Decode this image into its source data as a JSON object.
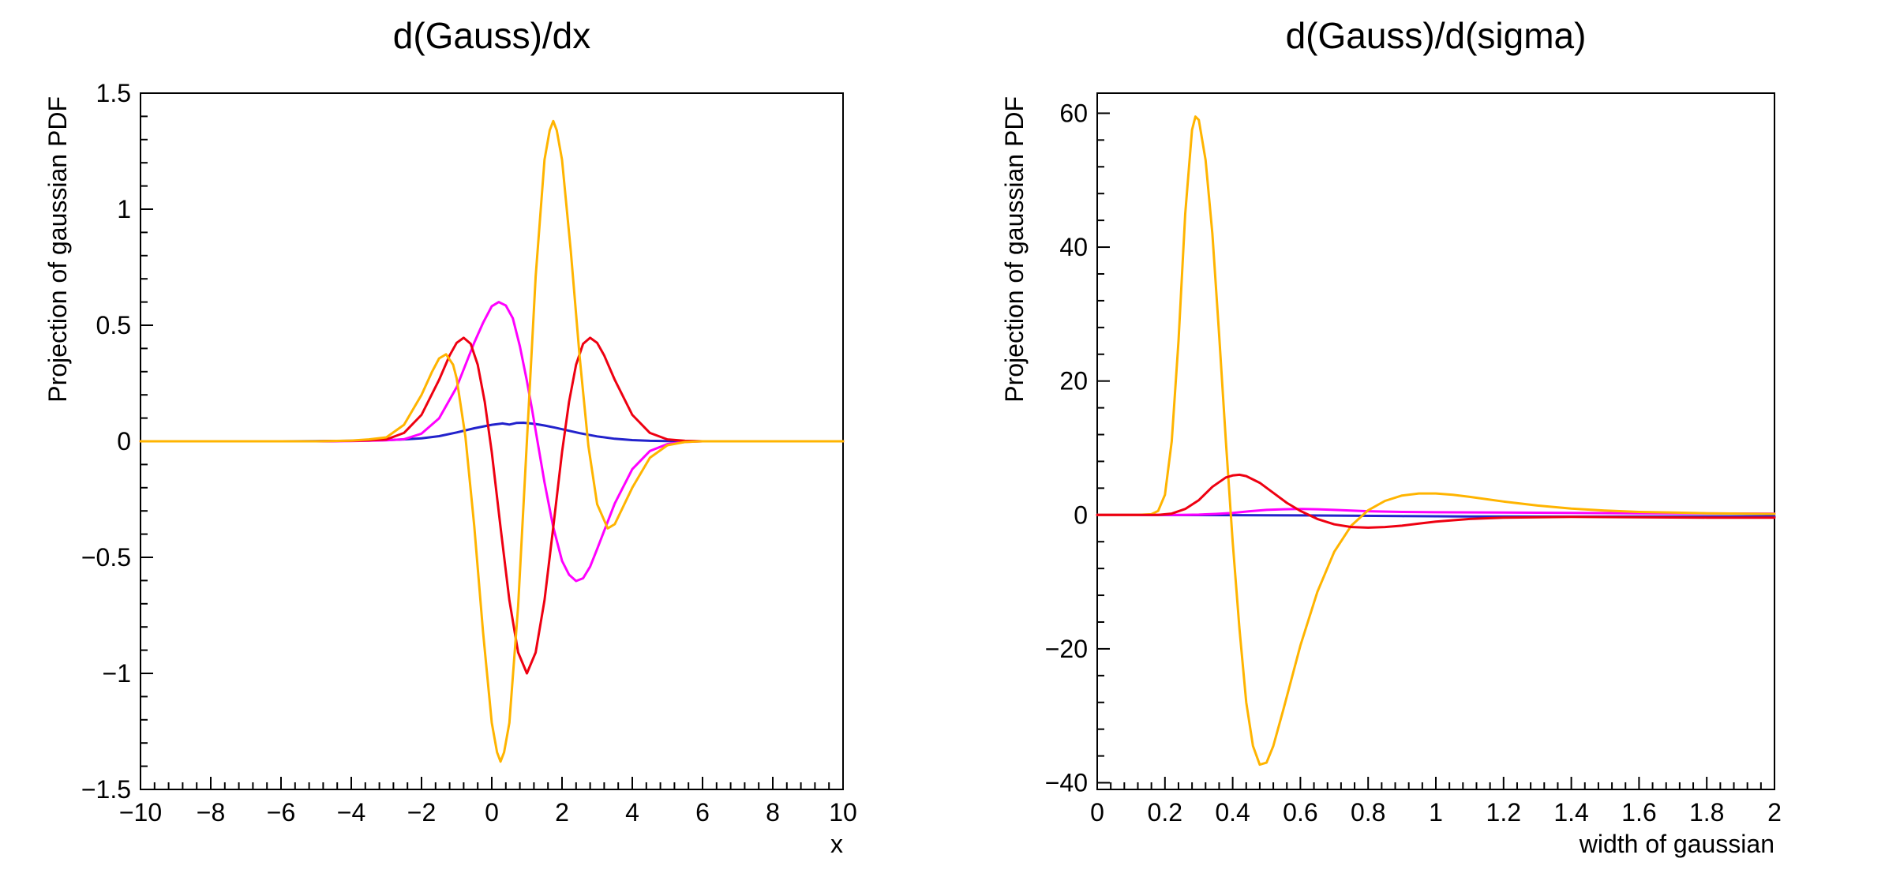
{
  "canvas": {
    "background": "#ffffff"
  },
  "colors": {
    "blue": "#2222cc",
    "magenta": "#ff00ff",
    "red": "#ee0011",
    "orange": "#ffb400",
    "axis": "#000000"
  },
  "chart_data": [
    {
      "type": "line",
      "title": "d(Gauss)/dx",
      "xlabel": "x",
      "ylabel": "Projection of gaussian PDF",
      "xlim": [
        -10,
        10
      ],
      "ylim": [
        -1.5,
        1.5
      ],
      "grid": false,
      "legend": null,
      "x_ticks": [
        -10,
        -8,
        -6,
        -4,
        -2,
        0,
        2,
        4,
        6,
        8,
        10
      ],
      "x_tick_labels": [
        "−10",
        "−8",
        "−6",
        "−4",
        "−2",
        "0",
        "2",
        "4",
        "6",
        "8",
        "10"
      ],
      "x_minor_step": 0.4,
      "y_ticks": [
        -1.5,
        -1,
        -0.5,
        0,
        0.5,
        1,
        1.5
      ],
      "y_tick_labels": [
        "−1.5",
        "−1",
        "−0.5",
        "0",
        "0.5",
        "1",
        "1.5"
      ],
      "y_minor_step": 0.1,
      "frame": {
        "l": 178,
        "r": 1068,
        "t": 118,
        "b": 1000
      },
      "series": [
        {
          "name": "curve-blue",
          "color": "#2222cc",
          "points": [
            [
              -10,
              0
            ],
            [
              -6,
              0
            ],
            [
              -5,
              0.001
            ],
            [
              -4,
              0.002
            ],
            [
              -3.5,
              0.003
            ],
            [
              -3,
              0.005
            ],
            [
              -2.5,
              0.008
            ],
            [
              -2,
              0.013
            ],
            [
              -1.5,
              0.022
            ],
            [
              -1,
              0.038
            ],
            [
              -0.5,
              0.056
            ],
            [
              -0.2,
              0.065
            ],
            [
              0,
              0.071
            ],
            [
              0.3,
              0.077
            ],
            [
              0.5,
              0.072
            ],
            [
              0.7,
              0.079
            ],
            [
              0.9,
              0.08
            ],
            [
              1.1,
              0.077
            ],
            [
              1.3,
              0.073
            ],
            [
              1.5,
              0.068
            ],
            [
              1.8,
              0.059
            ],
            [
              2,
              0.052
            ],
            [
              2.5,
              0.035
            ],
            [
              3,
              0.021
            ],
            [
              3.5,
              0.011
            ],
            [
              4,
              0.005
            ],
            [
              4.5,
              0.002
            ],
            [
              5,
              0.001
            ],
            [
              6,
              0
            ],
            [
              10,
              0
            ]
          ]
        },
        {
          "name": "curve-magenta",
          "color": "#ff00ff",
          "points": [
            [
              -10,
              0
            ],
            [
              -5,
              0
            ],
            [
              -4,
              0.001
            ],
            [
              -3,
              0.004
            ],
            [
              -2.5,
              0.009
            ],
            [
              -2,
              0.033
            ],
            [
              -1.5,
              0.099
            ],
            [
              -1,
              0.233
            ],
            [
              -0.5,
              0.425
            ],
            [
              -0.25,
              0.51
            ],
            [
              0,
              0.582
            ],
            [
              0.2,
              0.6
            ],
            [
              0.4,
              0.585
            ],
            [
              0.6,
              0.53
            ],
            [
              0.8,
              0.41
            ],
            [
              1,
              0.26
            ],
            [
              1.15,
              0.134
            ],
            [
              1.3,
              0
            ],
            [
              1.5,
              -0.177
            ],
            [
              1.75,
              -0.37
            ],
            [
              2,
              -0.515
            ],
            [
              2.2,
              -0.575
            ],
            [
              2.4,
              -0.602
            ],
            [
              2.6,
              -0.59
            ],
            [
              2.8,
              -0.54
            ],
            [
              3,
              -0.464
            ],
            [
              3.5,
              -0.268
            ],
            [
              4,
              -0.12
            ],
            [
              4.5,
              -0.042
            ],
            [
              5,
              -0.012
            ],
            [
              5.5,
              -0.003
            ],
            [
              6,
              0
            ],
            [
              10,
              0
            ]
          ]
        },
        {
          "name": "curve-red",
          "color": "#ee0011",
          "points": [
            [
              -10,
              0
            ],
            [
              -5,
              0
            ],
            [
              -4,
              0.002
            ],
            [
              -3.5,
              0.004
            ],
            [
              -3,
              0.008
            ],
            [
              -2.5,
              0.036
            ],
            [
              -2,
              0.114
            ],
            [
              -1.5,
              0.265
            ],
            [
              -1.2,
              0.37
            ],
            [
              -1,
              0.424
            ],
            [
              -0.8,
              0.446
            ],
            [
              -0.6,
              0.42
            ],
            [
              -0.4,
              0.33
            ],
            [
              -0.2,
              0.17
            ],
            [
              0,
              -0.047
            ],
            [
              0.25,
              -0.37
            ],
            [
              0.5,
              -0.685
            ],
            [
              0.75,
              -0.91
            ],
            [
              1,
              -1
            ],
            [
              1.25,
              -0.91
            ],
            [
              1.5,
              -0.685
            ],
            [
              1.75,
              -0.37
            ],
            [
              2,
              -0.047
            ],
            [
              2.2,
              0.17
            ],
            [
              2.4,
              0.33
            ],
            [
              2.6,
              0.42
            ],
            [
              2.8,
              0.446
            ],
            [
              3,
              0.424
            ],
            [
              3.2,
              0.37
            ],
            [
              3.5,
              0.265
            ],
            [
              4,
              0.114
            ],
            [
              4.5,
              0.036
            ],
            [
              5,
              0.008
            ],
            [
              5.5,
              0.002
            ],
            [
              6,
              0
            ],
            [
              10,
              0
            ]
          ]
        },
        {
          "name": "curve-orange",
          "color": "#ffb400",
          "points": [
            [
              -10,
              0
            ],
            [
              -5,
              0
            ],
            [
              -4,
              0.003
            ],
            [
              -3.5,
              0.008
            ],
            [
              -3,
              0.017
            ],
            [
              -2.5,
              0.071
            ],
            [
              -2,
              0.2
            ],
            [
              -1.7,
              0.3
            ],
            [
              -1.5,
              0.357
            ],
            [
              -1.3,
              0.375
            ],
            [
              -1.1,
              0.33
            ],
            [
              -1,
              0.271
            ],
            [
              -0.75,
              0.02
            ],
            [
              -0.5,
              -0.365
            ],
            [
              -0.25,
              -0.82
            ],
            [
              0,
              -1.213
            ],
            [
              0.15,
              -1.34
            ],
            [
              0.25,
              -1.38
            ],
            [
              0.35,
              -1.34
            ],
            [
              0.5,
              -1.213
            ],
            [
              0.75,
              -0.71
            ],
            [
              1,
              0
            ],
            [
              1.25,
              0.71
            ],
            [
              1.5,
              1.213
            ],
            [
              1.65,
              1.34
            ],
            [
              1.75,
              1.38
            ],
            [
              1.85,
              1.34
            ],
            [
              2,
              1.213
            ],
            [
              2.25,
              0.82
            ],
            [
              2.5,
              0.365
            ],
            [
              2.75,
              -0.02
            ],
            [
              3,
              -0.271
            ],
            [
              3.3,
              -0.375
            ],
            [
              3.5,
              -0.357
            ],
            [
              4,
              -0.2
            ],
            [
              4.5,
              -0.071
            ],
            [
              5,
              -0.017
            ],
            [
              5.5,
              -0.003
            ],
            [
              6,
              0
            ],
            [
              10,
              0
            ]
          ]
        }
      ]
    },
    {
      "type": "line",
      "title": "d(Gauss)/d(sigma)",
      "xlabel": "width of gaussian",
      "ylabel": "Projection of gaussian PDF",
      "xlim": [
        0,
        2
      ],
      "ylim": [
        -41,
        63
      ],
      "grid": false,
      "legend": null,
      "x_ticks": [
        0,
        0.2,
        0.4,
        0.6,
        0.8,
        1,
        1.2,
        1.4,
        1.6,
        1.8,
        2
      ],
      "x_tick_labels": [
        "0",
        "0.2",
        "0.4",
        "0.6",
        "0.8",
        "1",
        "1.2",
        "1.4",
        "1.6",
        "1.8",
        "2"
      ],
      "x_minor_step": 0.04,
      "y_ticks": [
        -40,
        -20,
        0,
        20,
        40,
        60
      ],
      "y_tick_labels": [
        "−40",
        "−20",
        "0",
        "20",
        "40",
        "60"
      ],
      "y_minor_step": 4,
      "frame": {
        "l": 196,
        "r": 1054,
        "t": 118,
        "b": 1000
      },
      "series": [
        {
          "name": "curve-blue",
          "color": "#2222cc",
          "points": [
            [
              0,
              0
            ],
            [
              0.3,
              -0.02
            ],
            [
              0.5,
              -0.05
            ],
            [
              0.7,
              -0.1
            ],
            [
              0.9,
              -0.18
            ],
            [
              1.1,
              -0.22
            ],
            [
              1.3,
              -0.25
            ],
            [
              1.5,
              -0.25
            ],
            [
              1.7,
              -0.22
            ],
            [
              2,
              -0.2
            ]
          ]
        },
        {
          "name": "curve-magenta",
          "color": "#ff00ff",
          "points": [
            [
              0,
              0
            ],
            [
              0.25,
              0
            ],
            [
              0.3,
              0.05
            ],
            [
              0.35,
              0.15
            ],
            [
              0.4,
              0.3
            ],
            [
              0.45,
              0.55
            ],
            [
              0.5,
              0.75
            ],
            [
              0.55,
              0.85
            ],
            [
              0.6,
              0.9
            ],
            [
              0.65,
              0.85
            ],
            [
              0.7,
              0.75
            ],
            [
              0.8,
              0.55
            ],
            [
              0.9,
              0.45
            ],
            [
              1,
              0.4
            ],
            [
              1.2,
              0.35
            ],
            [
              1.4,
              0.3
            ],
            [
              1.6,
              0.25
            ],
            [
              1.8,
              0.22
            ],
            [
              2,
              0.2
            ]
          ]
        },
        {
          "name": "curve-orange",
          "color": "#ffb400",
          "points": [
            [
              0,
              0
            ],
            [
              0.12,
              0
            ],
            [
              0.16,
              0.1
            ],
            [
              0.18,
              0.6
            ],
            [
              0.2,
              3
            ],
            [
              0.22,
              11
            ],
            [
              0.24,
              26
            ],
            [
              0.26,
              45
            ],
            [
              0.28,
              57.5
            ],
            [
              0.29,
              59.5
            ],
            [
              0.3,
              59
            ],
            [
              0.32,
              53
            ],
            [
              0.34,
              42
            ],
            [
              0.36,
              27
            ],
            [
              0.38,
              11
            ],
            [
              0.4,
              -4
            ],
            [
              0.42,
              -17
            ],
            [
              0.44,
              -28
            ],
            [
              0.46,
              -34.5
            ],
            [
              0.48,
              -37.3
            ],
            [
              0.5,
              -37
            ],
            [
              0.52,
              -34.5
            ],
            [
              0.55,
              -29
            ],
            [
              0.6,
              -19.5
            ],
            [
              0.65,
              -11.5
            ],
            [
              0.7,
              -5.5
            ],
            [
              0.75,
              -1.6
            ],
            [
              0.8,
              0.7
            ],
            [
              0.85,
              2.1
            ],
            [
              0.9,
              2.9
            ],
            [
              0.95,
              3.2
            ],
            [
              1,
              3.2
            ],
            [
              1.05,
              3
            ],
            [
              1.1,
              2.7
            ],
            [
              1.2,
              2
            ],
            [
              1.3,
              1.4
            ],
            [
              1.4,
              0.95
            ],
            [
              1.5,
              0.65
            ],
            [
              1.6,
              0.45
            ],
            [
              1.7,
              0.35
            ],
            [
              1.8,
              0.25
            ],
            [
              1.9,
              0.2
            ],
            [
              2,
              0.15
            ]
          ]
        },
        {
          "name": "curve-red",
          "color": "#ee0011",
          "points": [
            [
              0,
              0
            ],
            [
              0.18,
              0
            ],
            [
              0.22,
              0.2
            ],
            [
              0.26,
              0.9
            ],
            [
              0.3,
              2.2
            ],
            [
              0.34,
              4.2
            ],
            [
              0.38,
              5.6
            ],
            [
              0.4,
              5.9
            ],
            [
              0.42,
              6
            ],
            [
              0.44,
              5.8
            ],
            [
              0.48,
              4.8
            ],
            [
              0.52,
              3.3
            ],
            [
              0.56,
              1.8
            ],
            [
              0.6,
              0.6
            ],
            [
              0.65,
              -0.6
            ],
            [
              0.7,
              -1.4
            ],
            [
              0.75,
              -1.8
            ],
            [
              0.8,
              -1.9
            ],
            [
              0.85,
              -1.8
            ],
            [
              0.9,
              -1.6
            ],
            [
              0.95,
              -1.3
            ],
            [
              1,
              -1
            ],
            [
              1.1,
              -0.6
            ],
            [
              1.2,
              -0.4
            ],
            [
              1.4,
              -0.3
            ],
            [
              1.6,
              -0.35
            ],
            [
              1.8,
              -0.4
            ],
            [
              2,
              -0.4
            ]
          ]
        }
      ]
    }
  ],
  "style": {
    "tick_major_len": 16,
    "tick_minor_len": 9,
    "axis_width": 2,
    "curve_width": 3,
    "label_font_size": 32,
    "title_font_size": 46
  }
}
